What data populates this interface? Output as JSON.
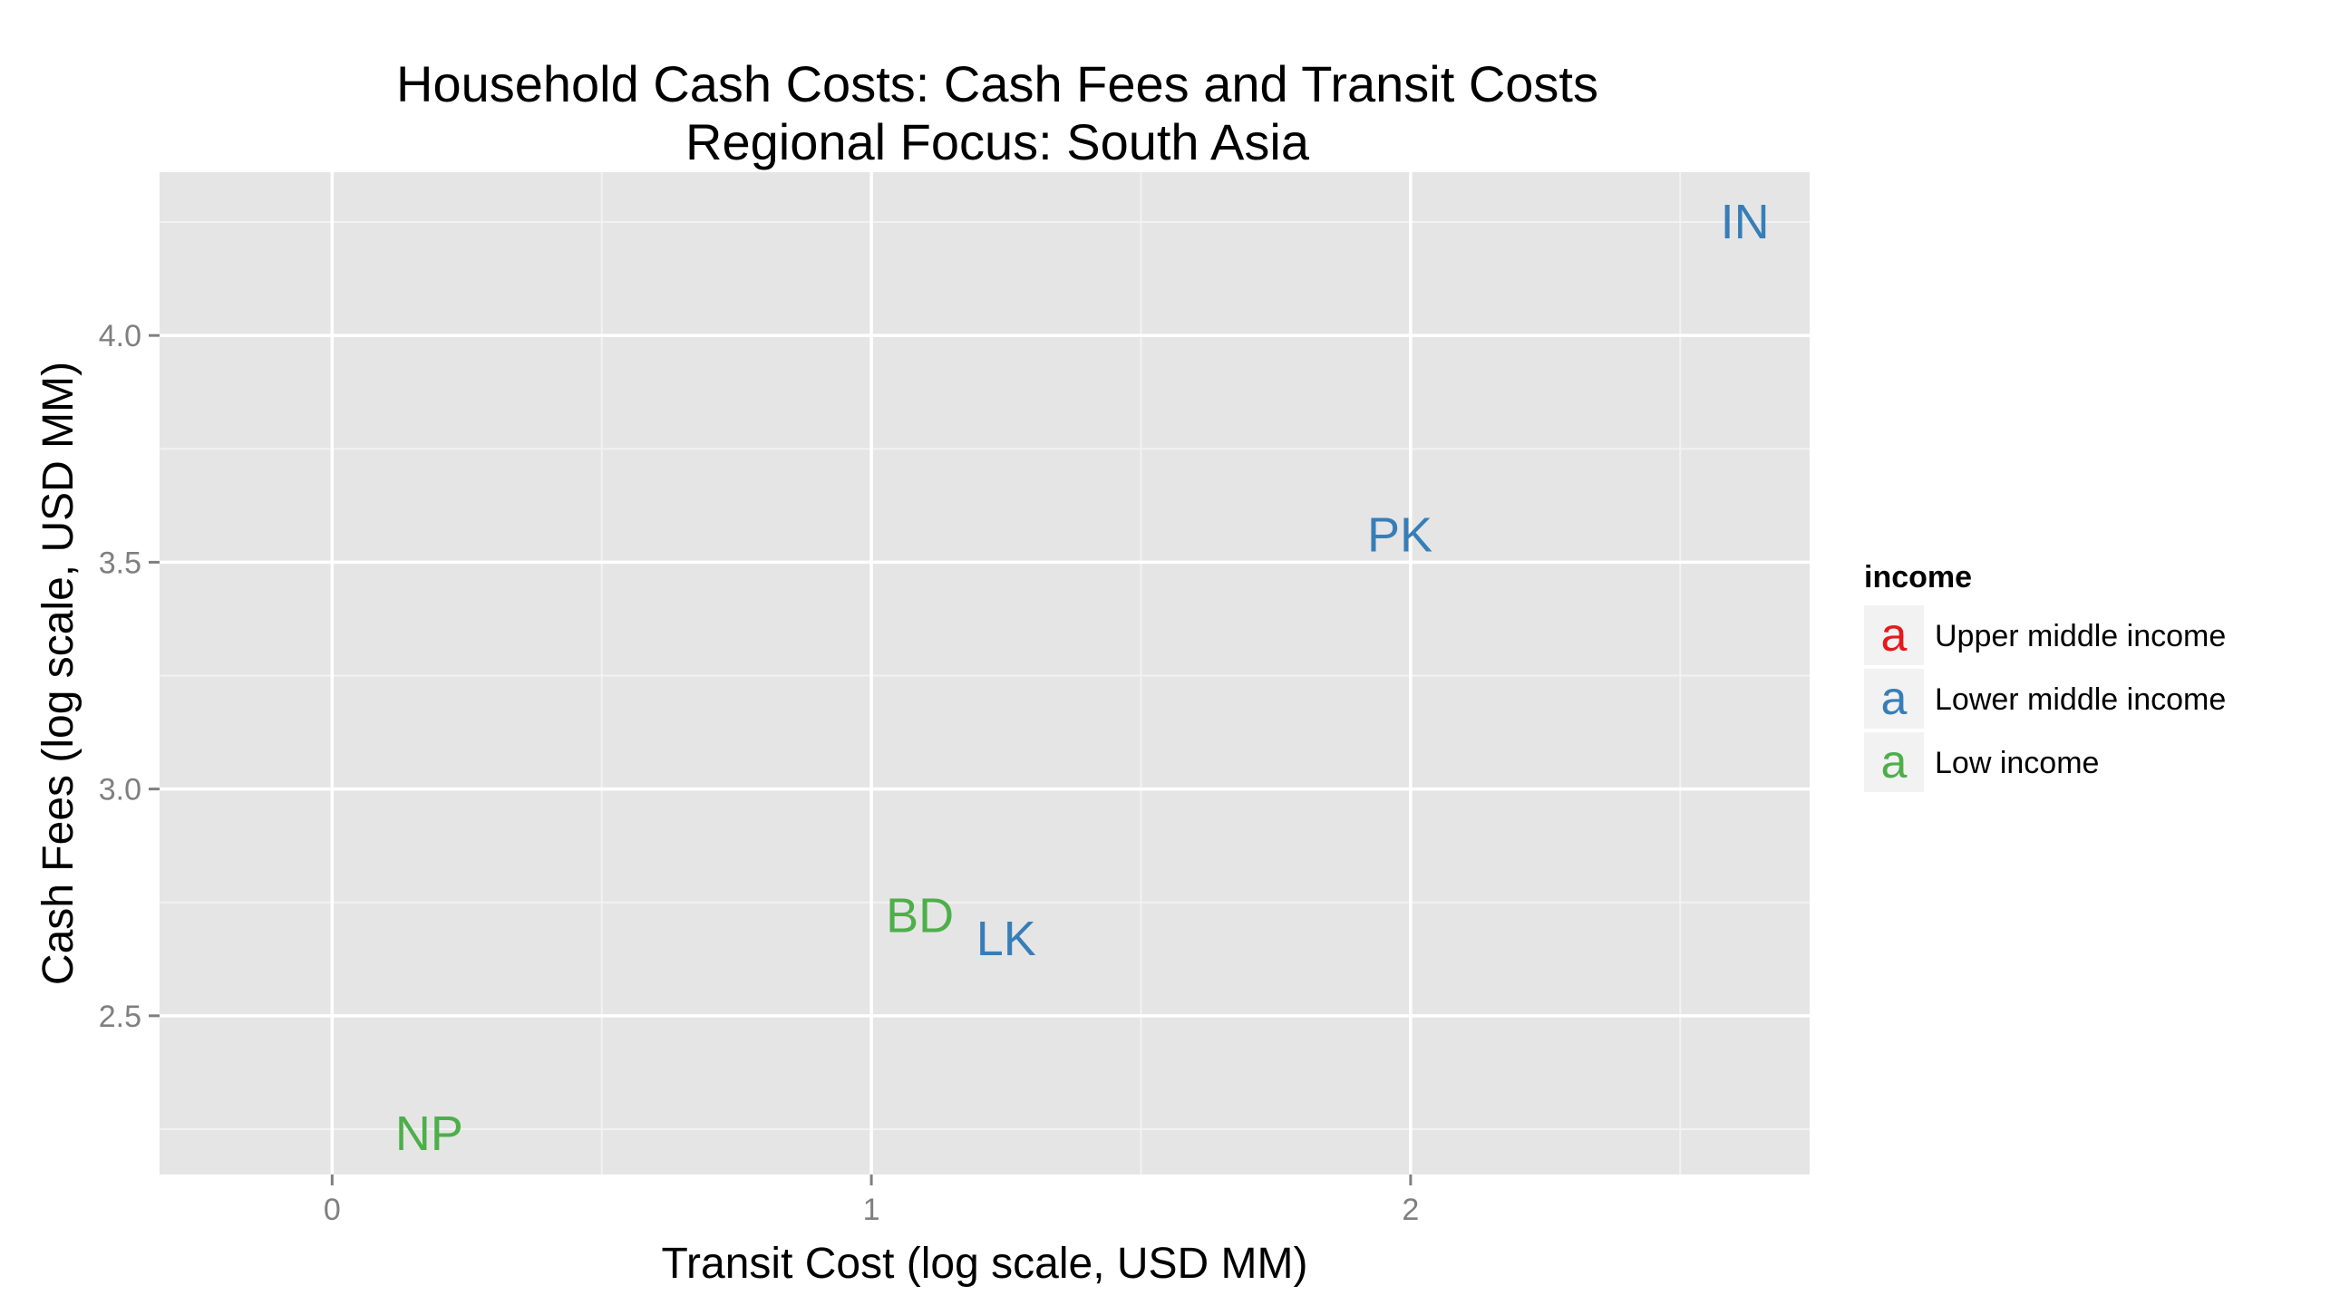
{
  "chart_data": {
    "type": "scatter",
    "title": "Household Cash Costs: Cash Fees and Transit Costs",
    "subtitle": "Regional Focus: South Asia",
    "xlabel": "Transit Cost (log scale, USD MM)",
    "ylabel": "Cash Fees (log scale, USD MM)",
    "xlim": [
      -0.32,
      2.74
    ],
    "ylim": [
      2.15,
      4.36
    ],
    "x_ticks": [
      0,
      1,
      2
    ],
    "x_tick_labels": [
      "0",
      "1",
      "2"
    ],
    "x_minor_ticks": [
      0.5,
      1.5,
      2.5
    ],
    "y_ticks": [
      2.5,
      3.0,
      3.5,
      4.0
    ],
    "y_tick_labels": [
      "2.5",
      "3.0",
      "3.5",
      "4.0"
    ],
    "y_minor_ticks": [
      2.25,
      2.75,
      3.25,
      3.75,
      4.25
    ],
    "grid": true,
    "legend_position": "right",
    "legend": {
      "title": "income",
      "key_glyph": "a",
      "entries": [
        {
          "label": "Upper middle income",
          "color": "#E41A1C"
        },
        {
          "label": "Lower middle income",
          "color": "#377EB8"
        },
        {
          "label": "Low income",
          "color": "#4DAF4A"
        }
      ]
    },
    "points": [
      {
        "label": "IN",
        "x": 2.62,
        "y": 4.25,
        "group": "Lower middle income"
      },
      {
        "label": "PK",
        "x": 1.98,
        "y": 3.56,
        "group": "Lower middle income"
      },
      {
        "label": "BD",
        "x": 1.09,
        "y": 2.72,
        "group": "Low income"
      },
      {
        "label": "LK",
        "x": 1.25,
        "y": 2.67,
        "group": "Lower middle income"
      },
      {
        "label": "NP",
        "x": 0.18,
        "y": 2.24,
        "group": "Low income"
      }
    ],
    "colors": {
      "panel_background": "#E5E5E5",
      "grid_major": "#FFFFFF",
      "grid_minor": "#F2F2F2",
      "tick_text": "#7F7F7F"
    }
  }
}
